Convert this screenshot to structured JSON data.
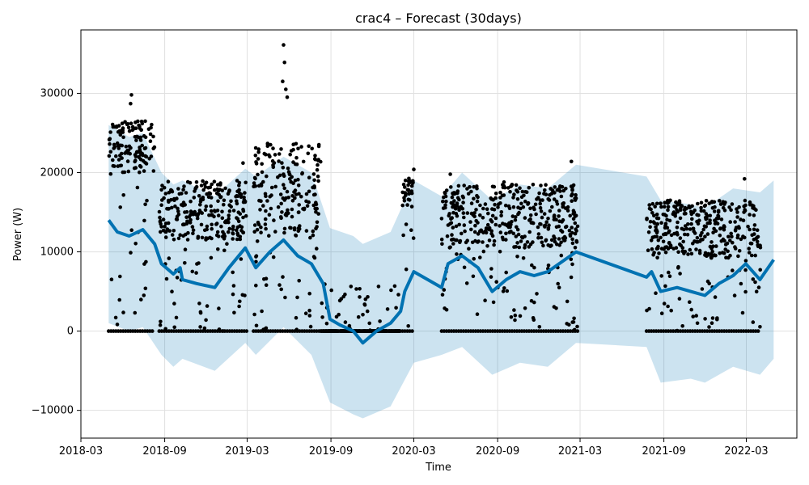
{
  "chart_data": {
    "type": "scatter",
    "title": "crac4 – Forecast (30days)",
    "xlabel": "Time",
    "ylabel": "Power (W)",
    "xlim": [
      "2018-03-01",
      "2022-06-20"
    ],
    "ylim": [
      -13500,
      38000
    ],
    "grid": true,
    "colors": {
      "observed": "#000000",
      "forecast_line": "#0072B2",
      "uncertainty_band": "#0072B2"
    },
    "x_ticks": [
      {
        "date": "2018-03-01",
        "label": "2018-03"
      },
      {
        "date": "2018-09-01",
        "label": "2018-09"
      },
      {
        "date": "2019-03-01",
        "label": "2019-03"
      },
      {
        "date": "2019-09-01",
        "label": "2019-09"
      },
      {
        "date": "2020-03-01",
        "label": "2020-03"
      },
      {
        "date": "2020-09-01",
        "label": "2020-09"
      },
      {
        "date": "2021-03-01",
        "label": "2021-03"
      },
      {
        "date": "2021-09-01",
        "label": "2021-09"
      },
      {
        "date": "2022-03-01",
        "label": "2022-03"
      }
    ],
    "y_ticks": [
      {
        "value": -10000,
        "label": "−10000"
      },
      {
        "value": 0,
        "label": "0"
      },
      {
        "value": 10000,
        "label": "10000"
      },
      {
        "value": 20000,
        "label": "20000"
      },
      {
        "value": 30000,
        "label": "30000"
      }
    ],
    "series": [
      {
        "role": "forecast",
        "points": [
          {
            "x": "2018-05-01",
            "y": 14000
          },
          {
            "x": "2018-05-20",
            "y": 12500
          },
          {
            "x": "2018-06-15",
            "y": 12000
          },
          {
            "x": "2018-07-15",
            "y": 12800
          },
          {
            "x": "2018-08-10",
            "y": 11000
          },
          {
            "x": "2018-08-25",
            "y": 8500
          },
          {
            "x": "2018-09-20",
            "y": 7200
          },
          {
            "x": "2018-10-05",
            "y": 8000
          },
          {
            "x": "2018-10-10",
            "y": 6500
          },
          {
            "x": "2018-11-10",
            "y": 6000
          },
          {
            "x": "2018-12-20",
            "y": 5500
          },
          {
            "x": "2019-01-20",
            "y": 8000
          },
          {
            "x": "2019-02-25",
            "y": 10500
          },
          {
            "x": "2019-03-20",
            "y": 8000
          },
          {
            "x": "2019-04-20",
            "y": 10000
          },
          {
            "x": "2019-05-20",
            "y": 11500
          },
          {
            "x": "2019-06-20",
            "y": 9500
          },
          {
            "x": "2019-07-20",
            "y": 8500
          },
          {
            "x": "2019-08-15",
            "y": 6000
          },
          {
            "x": "2019-08-30",
            "y": 1500
          },
          {
            "x": "2019-09-20",
            "y": 800
          },
          {
            "x": "2019-10-20",
            "y": 0
          },
          {
            "x": "2019-11-10",
            "y": -1500
          },
          {
            "x": "2019-12-10",
            "y": 0
          },
          {
            "x": "2020-01-10",
            "y": 1000
          },
          {
            "x": "2020-02-01",
            "y": 2500
          },
          {
            "x": "2020-02-10",
            "y": 5000
          },
          {
            "x": "2020-03-01",
            "y": 7500
          },
          {
            "x": "2020-05-01",
            "y": 5500
          },
          {
            "x": "2020-05-15",
            "y": 8500
          },
          {
            "x": "2020-06-15",
            "y": 9500
          },
          {
            "x": "2020-07-20",
            "y": 8000
          },
          {
            "x": "2020-08-20",
            "y": 5000
          },
          {
            "x": "2020-09-20",
            "y": 6500
          },
          {
            "x": "2020-10-20",
            "y": 7500
          },
          {
            "x": "2020-11-20",
            "y": 7000
          },
          {
            "x": "2020-12-20",
            "y": 7500
          },
          {
            "x": "2021-02-20",
            "y": 10000
          },
          {
            "x": "2021-07-25",
            "y": 6800
          },
          {
            "x": "2021-08-05",
            "y": 7500
          },
          {
            "x": "2021-08-25",
            "y": 5000
          },
          {
            "x": "2021-09-30",
            "y": 5500
          },
          {
            "x": "2021-10-30",
            "y": 5000
          },
          {
            "x": "2021-11-30",
            "y": 4500
          },
          {
            "x": "2021-12-31",
            "y": 6000
          },
          {
            "x": "2022-01-31",
            "y": 7000
          },
          {
            "x": "2022-02-28",
            "y": 8500
          },
          {
            "x": "2022-03-31",
            "y": 6500
          },
          {
            "x": "2022-04-30",
            "y": 9000
          }
        ]
      },
      {
        "role": "uncertainty_band",
        "points": [
          {
            "x": "2018-05-01",
            "lower": 1000,
            "upper": 26000
          },
          {
            "x": "2018-06-15",
            "lower": 0,
            "upper": 24500
          },
          {
            "x": "2018-07-15",
            "lower": 500,
            "upper": 25000
          },
          {
            "x": "2018-08-25",
            "lower": -3000,
            "upper": 20000
          },
          {
            "x": "2018-09-20",
            "lower": -4500,
            "upper": 18500
          },
          {
            "x": "2018-10-10",
            "lower": -3500,
            "upper": 19000
          },
          {
            "x": "2018-12-20",
            "lower": -5000,
            "upper": 17000
          },
          {
            "x": "2019-02-25",
            "lower": -1500,
            "upper": 20500
          },
          {
            "x": "2019-03-20",
            "lower": -3000,
            "upper": 19500
          },
          {
            "x": "2019-05-20",
            "lower": 500,
            "upper": 22000
          },
          {
            "x": "2019-07-20",
            "lower": -3000,
            "upper": 20000
          },
          {
            "x": "2019-08-30",
            "lower": -9000,
            "upper": 13000
          },
          {
            "x": "2019-10-20",
            "lower": -10500,
            "upper": 12000
          },
          {
            "x": "2019-11-10",
            "lower": -11000,
            "upper": 11000
          },
          {
            "x": "2020-01-10",
            "lower": -9500,
            "upper": 12500
          },
          {
            "x": "2020-03-01",
            "lower": -4000,
            "upper": 19000
          },
          {
            "x": "2020-05-01",
            "lower": -3000,
            "upper": 17000
          },
          {
            "x": "2020-06-15",
            "lower": -2000,
            "upper": 20000
          },
          {
            "x": "2020-08-20",
            "lower": -5500,
            "upper": 16500
          },
          {
            "x": "2020-10-20",
            "lower": -4000,
            "upper": 18500
          },
          {
            "x": "2020-12-20",
            "lower": -4500,
            "upper": 18000
          },
          {
            "x": "2021-02-20",
            "lower": -1500,
            "upper": 21000
          },
          {
            "x": "2021-07-25",
            "lower": -2000,
            "upper": 19500
          },
          {
            "x": "2021-08-25",
            "lower": -6500,
            "upper": 16500
          },
          {
            "x": "2021-10-30",
            "lower": -6000,
            "upper": 16000
          },
          {
            "x": "2021-11-30",
            "lower": -6500,
            "upper": 15500
          },
          {
            "x": "2022-01-31",
            "lower": -4500,
            "upper": 18000
          },
          {
            "x": "2022-03-31",
            "lower": -5500,
            "upper": 17500
          },
          {
            "x": "2022-04-30",
            "lower": -3500,
            "upper": 19000
          }
        ]
      },
      {
        "role": "observed",
        "marker": "dot",
        "clusters": [
          {
            "from": "2018-05-01",
            "to": "2018-08-10",
            "ymin": 20000,
            "ymax": 26500,
            "zero_floor": true
          },
          {
            "from": "2018-08-20",
            "to": "2019-02-28",
            "ymin": 11500,
            "ymax": 19000,
            "zero_floor": true
          },
          {
            "from": "2019-03-15",
            "to": "2019-08-10",
            "ymin": 12000,
            "ymax": 24000,
            "zero_floor": true
          },
          {
            "from": "2019-08-10",
            "to": "2020-01-31",
            "ymin": 0,
            "ymax": 0,
            "zero_floor": true
          },
          {
            "from": "2020-02-05",
            "to": "2020-03-01",
            "ymin": 15500,
            "ymax": 19500,
            "zero_floor": true
          },
          {
            "from": "2020-05-01",
            "to": "2021-02-25",
            "ymin": 10500,
            "ymax": 18500,
            "zero_floor": true
          },
          {
            "from": "2021-07-25",
            "to": "2022-04-01",
            "ymin": 9500,
            "ymax": 16500,
            "zero_floor": true
          }
        ],
        "highlights": [
          {
            "x": "2018-06-20",
            "y": 29800
          },
          {
            "x": "2018-06-18",
            "y": 28700
          },
          {
            "x": "2019-05-20",
            "y": 36100
          },
          {
            "x": "2019-05-22",
            "y": 33900
          },
          {
            "x": "2019-05-18",
            "y": 31500
          },
          {
            "x": "2019-05-25",
            "y": 30500
          },
          {
            "x": "2019-05-28",
            "y": 29500
          },
          {
            "x": "2018-05-05",
            "y": 25100
          },
          {
            "x": "2018-11-10",
            "y": 18800
          },
          {
            "x": "2019-02-20",
            "y": 21200
          },
          {
            "x": "2020-03-01",
            "y": 20400
          },
          {
            "x": "2020-05-20",
            "y": 19800
          },
          {
            "x": "2020-09-15",
            "y": 18800
          },
          {
            "x": "2021-02-10",
            "y": 21400
          },
          {
            "x": "2021-09-15",
            "y": 16500
          },
          {
            "x": "2022-02-25",
            "y": 19200
          }
        ]
      }
    ]
  }
}
